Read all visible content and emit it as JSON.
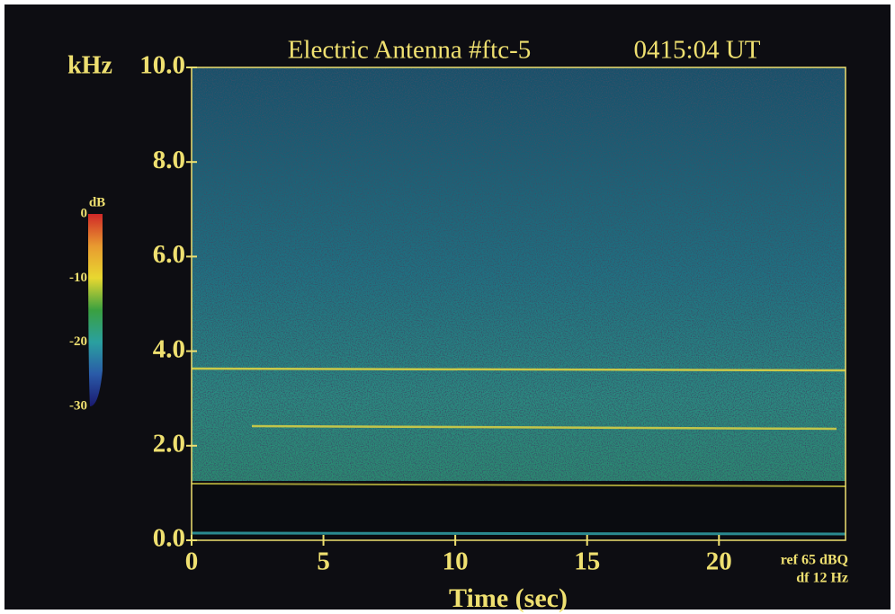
{
  "chart_data": {
    "type": "spectrogram",
    "title": "Electric Antenna #ftc-5",
    "subtitle": "0415:04 UT",
    "y_label": "kHz",
    "x_label": "Time (sec)",
    "xlim": [
      0,
      24.8
    ],
    "xticks": [
      0,
      5,
      10,
      15,
      20
    ],
    "ylim": [
      0,
      10
    ],
    "yticks": [
      {
        "value": 0,
        "label": "0.0"
      },
      {
        "value": 2,
        "label": "2.0"
      },
      {
        "value": 4,
        "label": "4.0"
      },
      {
        "value": 6,
        "label": "6.0"
      },
      {
        "value": 8,
        "label": "8.0"
      },
      {
        "value": 10,
        "label": "10.0"
      }
    ],
    "annotations": [
      "ref 65 dBQ",
      "df 12 Hz"
    ],
    "colorbar": {
      "label": "dB",
      "lim": [
        -30,
        0
      ],
      "ticks": [
        0,
        -10,
        -20,
        -30
      ],
      "colors": [
        "#1a1a70",
        "#2a5aa8",
        "#2aa0a0",
        "#3aa040",
        "#e8d830",
        "#e89a30",
        "#d02828"
      ]
    },
    "text_color": "#efe070"
  }
}
